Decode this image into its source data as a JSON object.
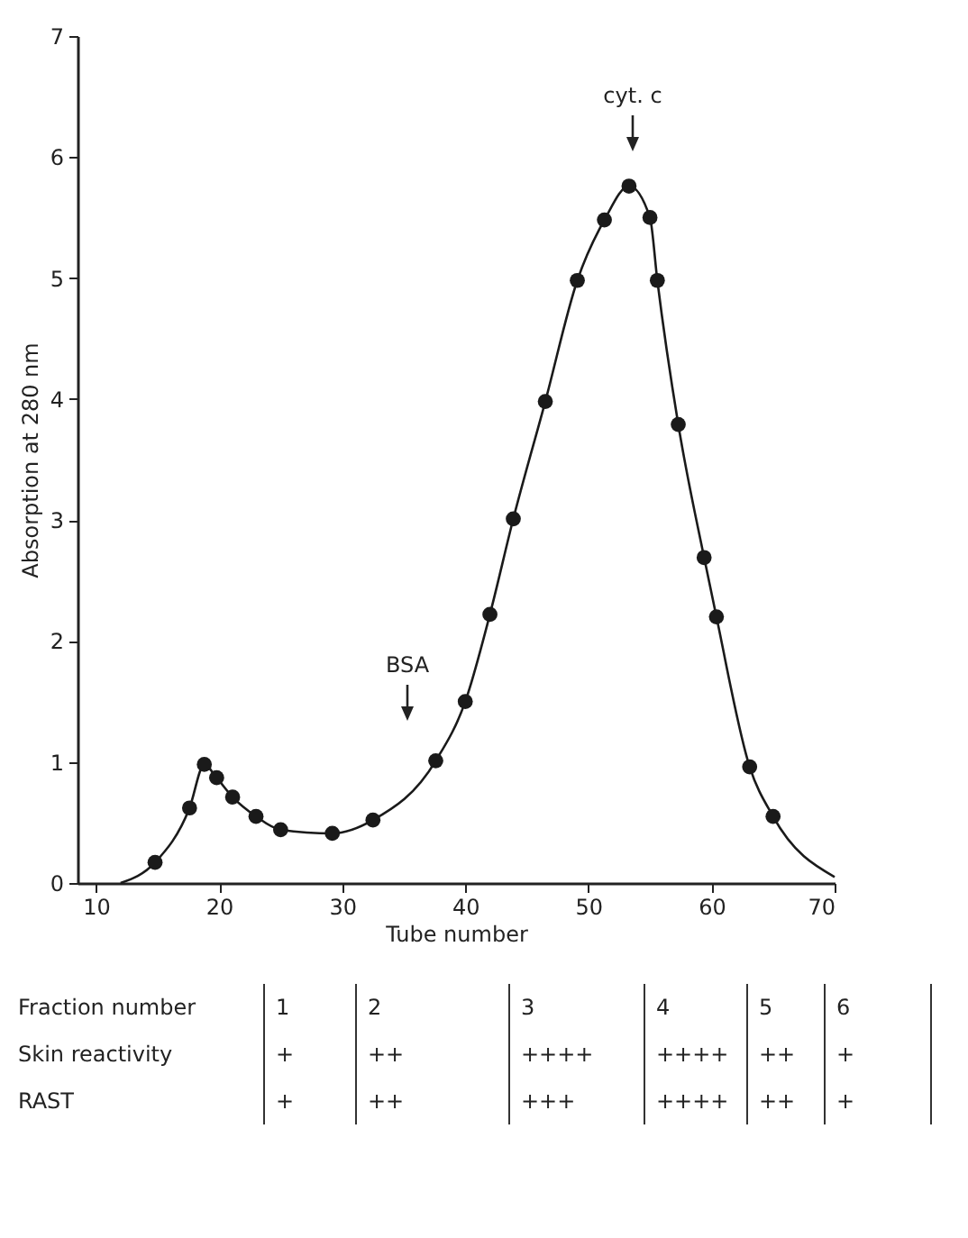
{
  "chart_data": {
    "type": "scatter",
    "xlabel": "Tube number",
    "ylabel": "Absorption at 280 nm",
    "xlim": [
      8.5,
      70
    ],
    "xticks": [
      10,
      20,
      30,
      40,
      50,
      60,
      70
    ],
    "ylim": [
      0,
      7
    ],
    "yticks": [
      0,
      1,
      2,
      3,
      4,
      5,
      6,
      7
    ],
    "grid": false,
    "marker": "circle",
    "series": [
      {
        "type": "line",
        "marker": "none",
        "color": "#1a1a1a",
        "line_style": "solid",
        "x": [
          12,
          14.8,
          17.6,
          18.8,
          19.8,
          21.1,
          23.0,
          25.0,
          29.2,
          32.5,
          37.6,
          40.0,
          42.0,
          43.9,
          46.5,
          49.1,
          51.3,
          53.3,
          55.0,
          55.6,
          57.3,
          59.4,
          60.4,
          63.1,
          65.0,
          70
        ],
        "values": [
          0,
          0.17,
          0.62,
          0.98,
          0.87,
          0.71,
          0.55,
          0.44,
          0.41,
          0.52,
          1.01,
          1.5,
          2.22,
          3.01,
          3.98,
          4.98,
          5.48,
          5.76,
          5.5,
          4.98,
          3.79,
          2.69,
          2.2,
          0.96,
          0.55,
          0.05
        ]
      },
      {
        "color": "#1a1a1a",
        "x": [
          14.8,
          17.6,
          18.8,
          19.8,
          21.1,
          23.0,
          25.0,
          29.2,
          32.5,
          37.6,
          40.0,
          42.0,
          43.9,
          46.5,
          49.1,
          51.3,
          53.3,
          55.0,
          55.6,
          57.3,
          59.4,
          60.4,
          63.1,
          65.0
        ],
        "values": [
          0.17,
          0.62,
          0.98,
          0.87,
          0.71,
          0.55,
          0.44,
          0.41,
          0.52,
          1.01,
          1.5,
          2.22,
          3.01,
          3.98,
          4.98,
          5.48,
          5.76,
          5.5,
          4.98,
          3.79,
          2.69,
          2.2,
          0.96,
          0.55
        ]
      }
    ],
    "annotations": [
      "BSA",
      "cyt. c",
      "Fraction number",
      "1",
      "2",
      "3",
      "4",
      "5",
      "6",
      "Skin reactivity",
      "+",
      "++",
      "++++",
      "++++",
      "++",
      "+",
      "RAST",
      "+",
      "++",
      "+++",
      "++++",
      "++",
      "+"
    ]
  }
}
